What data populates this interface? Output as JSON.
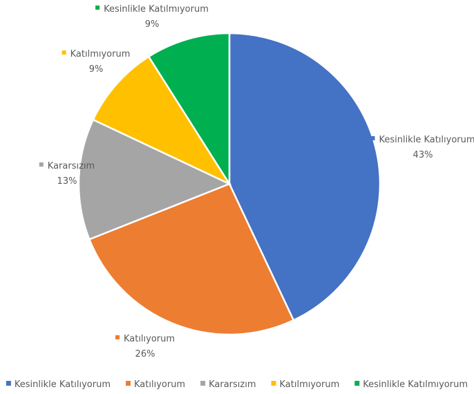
{
  "chart_data": {
    "type": "pie",
    "title": "",
    "slices": [
      {
        "label": "Kesinlikle Katılıyorum",
        "value": 43,
        "percent_label": "43%",
        "color": "#4472C4"
      },
      {
        "label": "Katılıyorum",
        "value": 26,
        "percent_label": "26%",
        "color": "#ED7D31"
      },
      {
        "label": "Kararsızım",
        "value": 13,
        "percent_label": "13%",
        "color": "#A5A5A5"
      },
      {
        "label": "Katılmıyorum",
        "value": 9,
        "percent_label": "9%",
        "color": "#FFC000"
      },
      {
        "label": "Kesinlikle Katılmıyorum",
        "value": 9,
        "percent_label": "9%",
        "color": "#00B050"
      }
    ],
    "start_angle_deg": 0,
    "direction": "clockwise",
    "legend_placement": "bottom",
    "data_labels": "category-and-percent"
  }
}
